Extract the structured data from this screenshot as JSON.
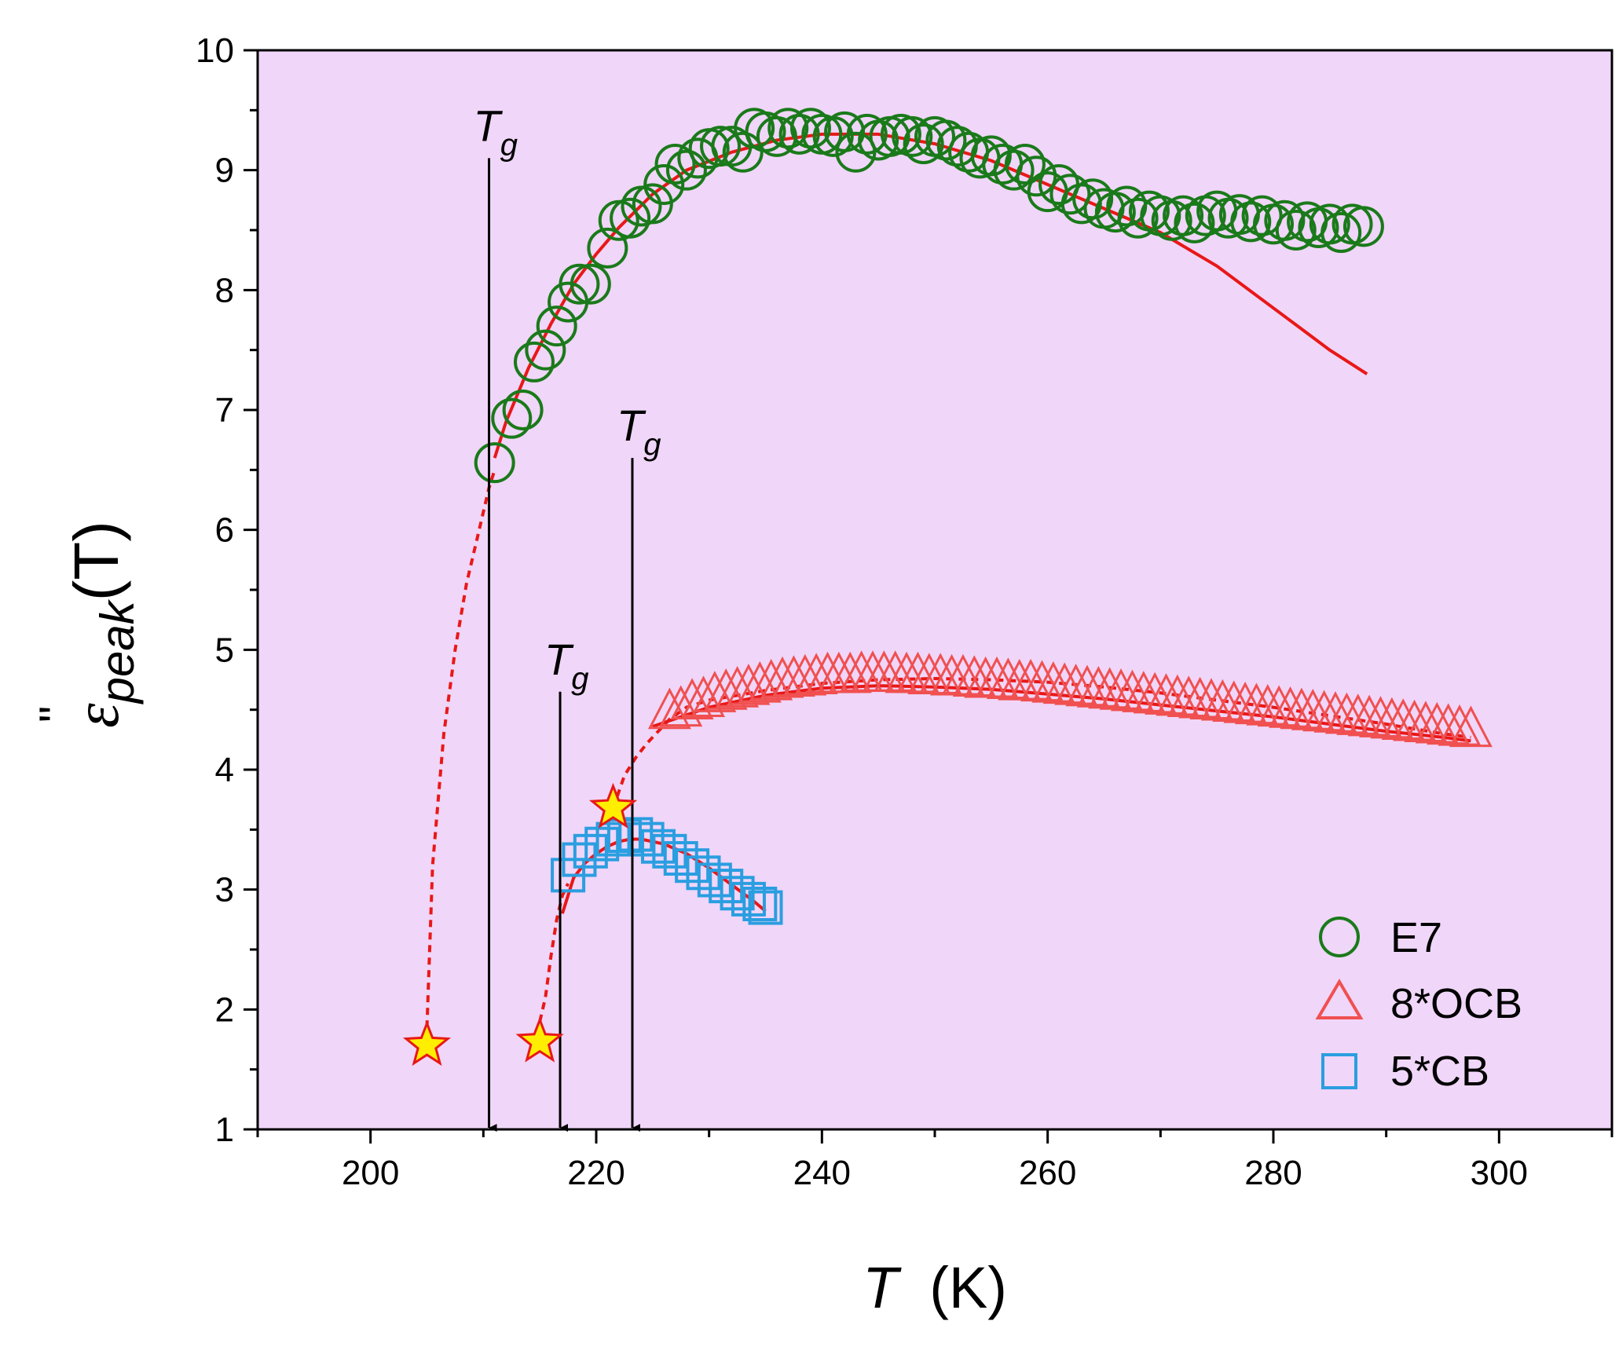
{
  "chart_data": {
    "type": "scatter",
    "title": "",
    "xlabel": {
      "symbol": "T",
      "unit": "(K)"
    },
    "ylabel": {
      "symbol": "ε",
      "prime": "\"",
      "subscript": "peak",
      "arg": "(T)"
    },
    "xlim": [
      190,
      310
    ],
    "ylim": [
      1,
      10
    ],
    "xticks": [
      "200",
      "220",
      "240",
      "260",
      "280",
      "300"
    ],
    "yticks": [
      "1",
      "2",
      "3",
      "4",
      "5",
      "6",
      "7",
      "8",
      "9",
      "10"
    ],
    "background": "#f0d6f8",
    "legend_position": "bottom-right",
    "series": [
      {
        "name": "E7",
        "marker": "circle",
        "color": "#1a7a1a",
        "x": [
          211,
          212.5,
          213.5,
          214.5,
          215.5,
          216.5,
          217.5,
          218.5,
          219.5,
          221,
          222,
          223,
          224,
          225,
          226,
          227,
          228,
          229,
          230,
          231,
          232,
          233,
          234,
          235,
          236,
          237,
          238,
          239,
          240,
          241,
          242,
          243,
          244,
          245,
          246,
          247,
          248,
          249,
          250,
          251,
          252,
          253,
          254,
          255,
          256,
          257,
          258,
          259,
          260,
          261,
          262,
          263,
          264,
          265,
          266,
          267,
          268,
          269,
          270,
          271,
          272,
          273,
          274,
          275,
          276,
          277,
          278,
          279,
          280,
          281,
          282,
          283,
          284,
          285,
          286,
          287,
          288
        ],
        "y": [
          6.56,
          6.93,
          7.0,
          7.4,
          7.5,
          7.7,
          7.9,
          8.05,
          8.05,
          8.35,
          8.58,
          8.6,
          8.7,
          8.72,
          8.88,
          9.05,
          9.0,
          9.1,
          9.18,
          9.2,
          9.2,
          9.15,
          9.35,
          9.32,
          9.28,
          9.35,
          9.3,
          9.35,
          9.3,
          9.28,
          9.32,
          9.15,
          9.3,
          9.25,
          9.28,
          9.3,
          9.28,
          9.22,
          9.28,
          9.25,
          9.2,
          9.15,
          9.1,
          9.12,
          9.05,
          9.0,
          9.05,
          8.95,
          8.82,
          8.88,
          8.8,
          8.72,
          8.76,
          8.68,
          8.65,
          8.7,
          8.6,
          8.66,
          8.62,
          8.58,
          8.62,
          8.56,
          8.62,
          8.66,
          8.6,
          8.63,
          8.57,
          8.62,
          8.55,
          8.58,
          8.5,
          8.57,
          8.52,
          8.55,
          8.48,
          8.55,
          8.53
        ]
      },
      {
        "name": "8*OCB",
        "marker": "triangle",
        "color": "#f05050",
        "x": [
          226.5,
          227.5,
          228.5,
          229.5,
          230.5,
          231.5,
          232.5,
          233.5,
          234.5,
          235.5,
          236.5,
          237.5,
          238.5,
          239.5,
          240.5,
          241.5,
          242.5,
          243.5,
          244.5,
          245.5,
          246.5,
          247.5,
          248.5,
          249.5,
          250.5,
          251.5,
          252.5,
          253.5,
          254.5,
          255.5,
          256.5,
          257.5,
          258.5,
          259.5,
          260.5,
          261.5,
          262.5,
          263.5,
          264.5,
          265.5,
          266.5,
          267.5,
          268.5,
          269.5,
          270.5,
          271.5,
          272.5,
          273.5,
          274.5,
          275.5,
          276.5,
          277.5,
          278.5,
          279.5,
          280.5,
          281.5,
          282.5,
          283.5,
          284.5,
          285.5,
          286.5,
          287.5,
          288.5,
          289.5,
          290.5,
          291.5,
          292.5,
          293.5,
          294.5,
          295.5,
          296.5,
          297.5
        ],
        "y": [
          4.48,
          4.5,
          4.56,
          4.58,
          4.62,
          4.64,
          4.66,
          4.68,
          4.7,
          4.72,
          4.74,
          4.75,
          4.76,
          4.77,
          4.78,
          4.78,
          4.78,
          4.79,
          4.79,
          4.79,
          4.79,
          4.78,
          4.78,
          4.77,
          4.77,
          4.76,
          4.76,
          4.75,
          4.74,
          4.74,
          4.73,
          4.72,
          4.72,
          4.71,
          4.7,
          4.69,
          4.68,
          4.67,
          4.66,
          4.65,
          4.64,
          4.63,
          4.62,
          4.61,
          4.6,
          4.59,
          4.58,
          4.57,
          4.56,
          4.55,
          4.54,
          4.53,
          4.52,
          4.51,
          4.5,
          4.49,
          4.48,
          4.47,
          4.46,
          4.45,
          4.44,
          4.43,
          4.42,
          4.41,
          4.4,
          4.39,
          4.38,
          4.37,
          4.36,
          4.35,
          4.34,
          4.33
        ]
      },
      {
        "name": "5*CB",
        "marker": "square",
        "color": "#2a9ee0",
        "x": [
          217.5,
          218.5,
          219.5,
          220.5,
          221.5,
          222.5,
          223.5,
          224.5,
          225.5,
          226.5,
          227.5,
          228.5,
          229.5,
          230.5,
          231.5,
          232.5,
          233.5,
          234.5,
          235
        ],
        "y": [
          3.12,
          3.25,
          3.32,
          3.38,
          3.42,
          3.45,
          3.46,
          3.42,
          3.36,
          3.32,
          3.26,
          3.2,
          3.14,
          3.08,
          3.03,
          2.97,
          2.92,
          2.88,
          2.85
        ]
      }
    ],
    "fits": [
      {
        "series": "E7",
        "color": "#e81818",
        "dashed_x": [
          205,
          205.5,
          206.5,
          207.5,
          208.5,
          209.5,
          210.5,
          211
        ],
        "dashed_y": [
          1.85,
          3.2,
          4.3,
          5.0,
          5.55,
          5.95,
          6.35,
          6.5
        ],
        "solid_x": [
          211,
          212,
          214,
          216,
          218,
          220,
          222,
          225,
          228,
          232,
          236,
          240,
          245,
          250,
          255,
          260,
          265,
          270,
          275,
          280,
          285,
          288.3
        ],
        "solid_y": [
          6.6,
          6.9,
          7.35,
          7.72,
          8.05,
          8.3,
          8.52,
          8.8,
          9.0,
          9.15,
          9.25,
          9.3,
          9.3,
          9.22,
          9.08,
          8.88,
          8.68,
          8.48,
          8.2,
          7.85,
          7.5,
          7.3
        ]
      },
      {
        "series": "8*OCB",
        "color": "#e81818",
        "dashed_x": [
          221.5,
          222.5,
          223.5,
          224.5,
          225.5,
          226.5,
          228,
          230,
          235,
          240,
          245,
          250,
          255,
          260,
          265,
          270,
          275,
          280,
          285,
          290,
          295,
          297.5
        ],
        "dashed_y": [
          3.68,
          3.95,
          4.1,
          4.22,
          4.32,
          4.42,
          4.52,
          4.58,
          4.66,
          4.72,
          4.75,
          4.76,
          4.75,
          4.73,
          4.69,
          4.64,
          4.58,
          4.52,
          4.45,
          4.38,
          4.3,
          4.27
        ],
        "solid_x": [
          225,
          230,
          235,
          240,
          245,
          250,
          255,
          260,
          265,
          270,
          275,
          280,
          285,
          290,
          295,
          297.5
        ],
        "solid_y": [
          4.36,
          4.52,
          4.62,
          4.68,
          4.7,
          4.69,
          4.67,
          4.63,
          4.59,
          4.54,
          4.49,
          4.44,
          4.38,
          4.32,
          4.27,
          4.24
        ]
      },
      {
        "series": "5*CB",
        "color": "#e81818",
        "dashed_x": [
          215,
          215.5,
          216,
          216.5,
          217,
          217.5
        ],
        "dashed_y": [
          1.9,
          2.1,
          2.45,
          2.75,
          2.95,
          3.05
        ],
        "solid_x": [
          217,
          218,
          219,
          220,
          221,
          222,
          223,
          224,
          226,
          228,
          230,
          232,
          234,
          235
        ],
        "solid_y": [
          2.8,
          3.1,
          3.22,
          3.3,
          3.36,
          3.4,
          3.42,
          3.42,
          3.38,
          3.3,
          3.18,
          3.04,
          2.9,
          2.82
        ]
      }
    ],
    "stars": [
      {
        "series": "E7",
        "x": 205,
        "y": 1.7
      },
      {
        "series": "5*CB",
        "x": 215,
        "y": 1.73
      },
      {
        "series": "8*OCB",
        "x": 221.5,
        "y": 3.68
      }
    ],
    "annotations": [
      {
        "text": "T",
        "sub": "g",
        "x": 210.5,
        "y_top": 9.1
      },
      {
        "text": "T",
        "sub": "g",
        "x": 216.8,
        "y_top": 4.65
      },
      {
        "text": "T",
        "sub": "g",
        "x": 223.2,
        "y_top": 6.6
      }
    ]
  }
}
